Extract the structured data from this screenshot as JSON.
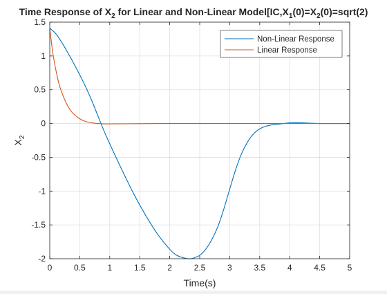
{
  "chart_data": {
    "type": "line",
    "title": {
      "parts": [
        {
          "text": "Time Response of X",
          "sub": false
        },
        {
          "text": "2",
          "sub": true
        },
        {
          "text": " for Linear and Non-Linear Model[IC,X",
          "sub": false
        },
        {
          "text": "1",
          "sub": true
        },
        {
          "text": "(0)=X",
          "sub": false
        },
        {
          "text": "2",
          "sub": true
        },
        {
          "text": "(0)=sqrt(2)",
          "sub": false
        }
      ]
    },
    "xlabel": "Time(s)",
    "ylabel": {
      "base": "X",
      "sub": "2"
    },
    "xlim": [
      0,
      5
    ],
    "ylim": [
      -2,
      1.5
    ],
    "xticks": [
      0,
      0.5,
      1,
      1.5,
      2,
      2.5,
      3,
      3.5,
      4,
      4.5,
      5
    ],
    "xtick_labels": [
      "0",
      "0.5",
      "1",
      "1.5",
      "2",
      "2.5",
      "3",
      "3.5",
      "4",
      "4.5",
      "5"
    ],
    "yticks": [
      -2,
      -1.5,
      -1,
      -0.5,
      0,
      0.5,
      1,
      1.5
    ],
    "ytick_labels": [
      "-2",
      "-1.5",
      "-1",
      "-0.5",
      "0",
      "0.5",
      "1",
      "1.5"
    ],
    "grid": true,
    "legend_position": "top-right",
    "series": [
      {
        "name": "Non-Linear Response",
        "color": "#0072BD",
        "x": [
          0,
          0.1,
          0.2,
          0.3,
          0.4,
          0.5,
          0.6,
          0.7,
          0.8,
          0.9,
          1.0,
          1.2,
          1.4,
          1.6,
          1.8,
          2.0,
          2.1,
          2.2,
          2.3,
          2.35,
          2.4,
          2.5,
          2.6,
          2.7,
          2.8,
          2.9,
          3.0,
          3.1,
          3.2,
          3.3,
          3.4,
          3.5,
          3.6,
          3.7,
          3.8,
          3.9,
          4.0,
          4.2,
          4.5,
          5.0
        ],
        "y": [
          1.41,
          1.33,
          1.2,
          1.05,
          0.89,
          0.72,
          0.54,
          0.34,
          0.12,
          -0.1,
          -0.3,
          -0.68,
          -1.04,
          -1.36,
          -1.64,
          -1.86,
          -1.94,
          -1.98,
          -2.0,
          -2.0,
          -1.99,
          -1.95,
          -1.86,
          -1.72,
          -1.53,
          -1.27,
          -0.97,
          -0.68,
          -0.44,
          -0.27,
          -0.15,
          -0.08,
          -0.04,
          -0.02,
          -0.01,
          0.0,
          0.01,
          0.01,
          0.0,
          0.0
        ]
      },
      {
        "name": "Linear Response",
        "color": "#D95319",
        "x": [
          0,
          0.05,
          0.1,
          0.15,
          0.2,
          0.25,
          0.3,
          0.35,
          0.4,
          0.5,
          0.6,
          0.7,
          0.8,
          0.9,
          1.0,
          1.5,
          2.0,
          3.0,
          4.0,
          5.0
        ],
        "y": [
          1.41,
          1.05,
          0.8,
          0.6,
          0.46,
          0.35,
          0.26,
          0.19,
          0.14,
          0.07,
          0.03,
          0.01,
          0.0,
          -0.005,
          -0.005,
          -0.002,
          0.0,
          0.0,
          0.0,
          0.0
        ]
      }
    ]
  }
}
